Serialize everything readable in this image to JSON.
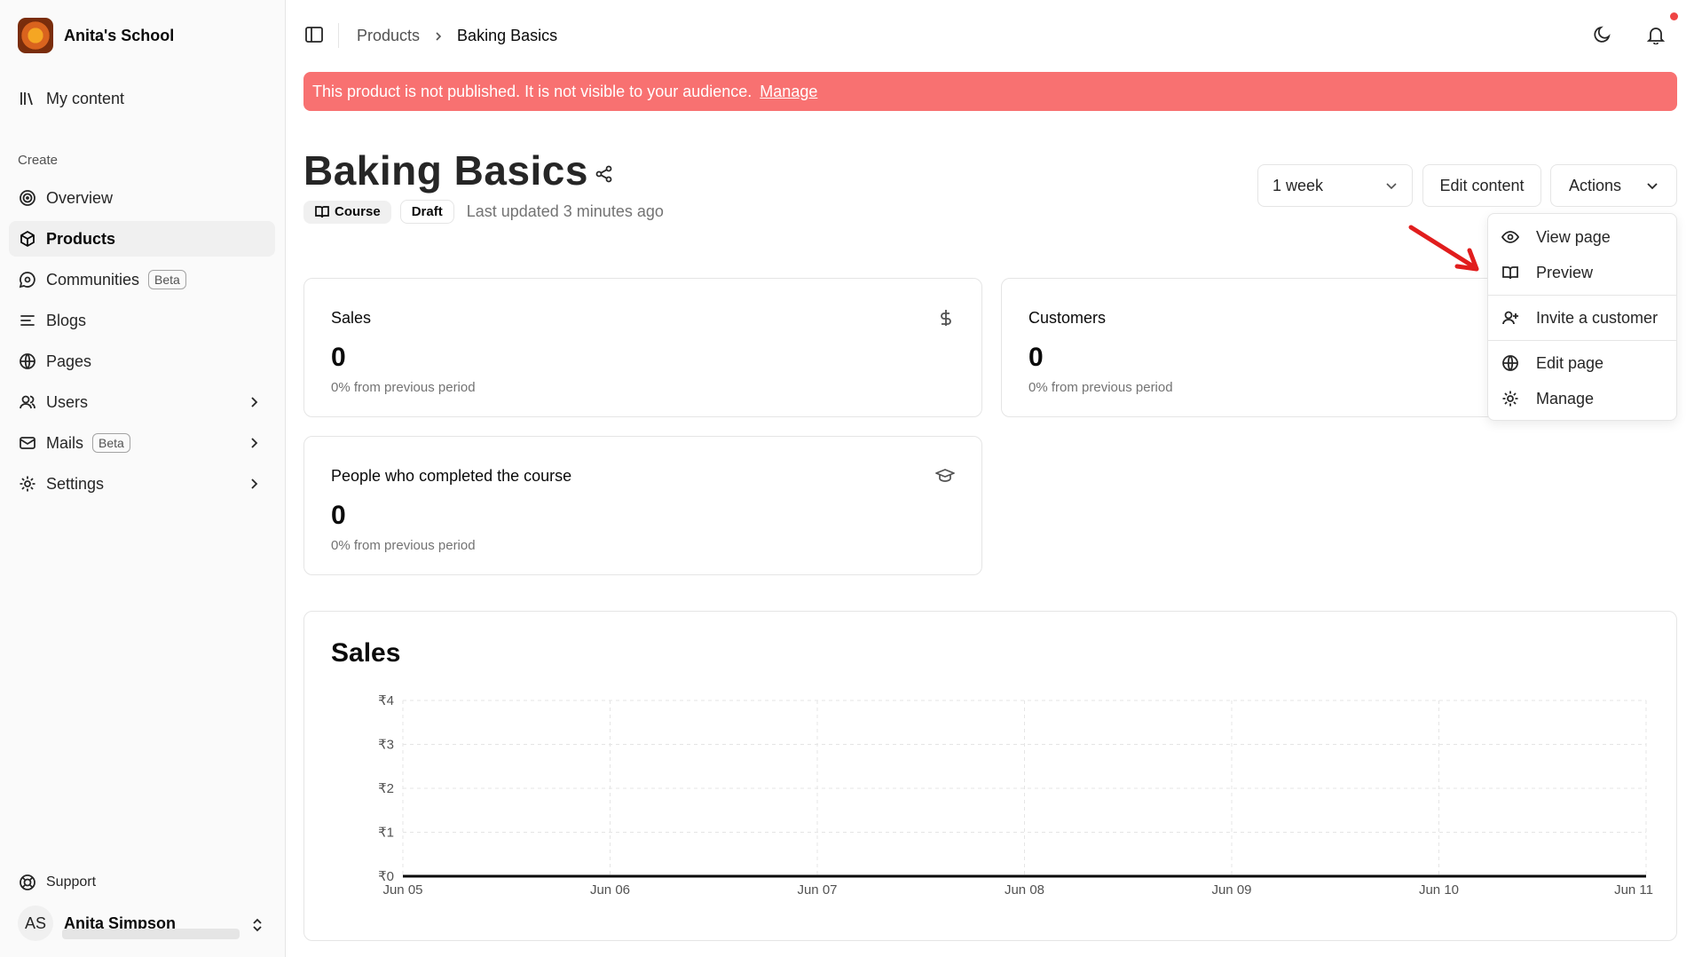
{
  "sidebar": {
    "school_name": "Anita's School",
    "my_content": "My content",
    "section_create": "Create",
    "items": [
      {
        "label": "Overview"
      },
      {
        "label": "Products"
      },
      {
        "label": "Communities",
        "badge": "Beta"
      },
      {
        "label": "Blogs"
      },
      {
        "label": "Pages"
      },
      {
        "label": "Users"
      },
      {
        "label": "Mails",
        "badge": "Beta"
      },
      {
        "label": "Settings"
      }
    ],
    "support": "Support",
    "user": {
      "initials": "AS",
      "name": "Anita Simpson"
    }
  },
  "breadcrumb": {
    "parent": "Products",
    "current": "Baking Basics"
  },
  "banner": {
    "text": "This product is not published. It is not visible to your audience.",
    "link": "Manage"
  },
  "product": {
    "title": "Baking Basics",
    "type": "Course",
    "status": "Draft",
    "updated": "Last updated 3 minutes ago"
  },
  "toolbar": {
    "period": "1 week",
    "edit": "Edit content",
    "actions": "Actions"
  },
  "actions_menu": {
    "items": [
      "View page",
      "Preview",
      "Invite a customer",
      "Edit page",
      "Manage"
    ]
  },
  "stats": [
    {
      "title": "Sales",
      "value": "0",
      "sub": "0% from previous period",
      "icon": "dollar-icon"
    },
    {
      "title": "Customers",
      "value": "0",
      "sub": "0% from previous period"
    },
    {
      "title": "People who completed the course",
      "value": "0",
      "sub": "0% from previous period",
      "icon": "graduation-cap-icon"
    }
  ],
  "chart_data": {
    "type": "line",
    "title": "Sales",
    "categories": [
      "Jun 05",
      "Jun 06",
      "Jun 07",
      "Jun 08",
      "Jun 09",
      "Jun 10",
      "Jun 11"
    ],
    "series": [
      {
        "values": [
          0,
          0,
          0,
          0,
          0,
          0,
          0
        ]
      }
    ],
    "y_ticks": [
      "₹0",
      "₹1",
      "₹2",
      "₹3",
      "₹4"
    ],
    "ylim": [
      0,
      4
    ],
    "grid": true,
    "line_color": "#0a0a0a"
  },
  "colors": {
    "banner": "#f87171",
    "notification_dot": "#ef4444",
    "annotation_arrow": "#e11d1d"
  }
}
